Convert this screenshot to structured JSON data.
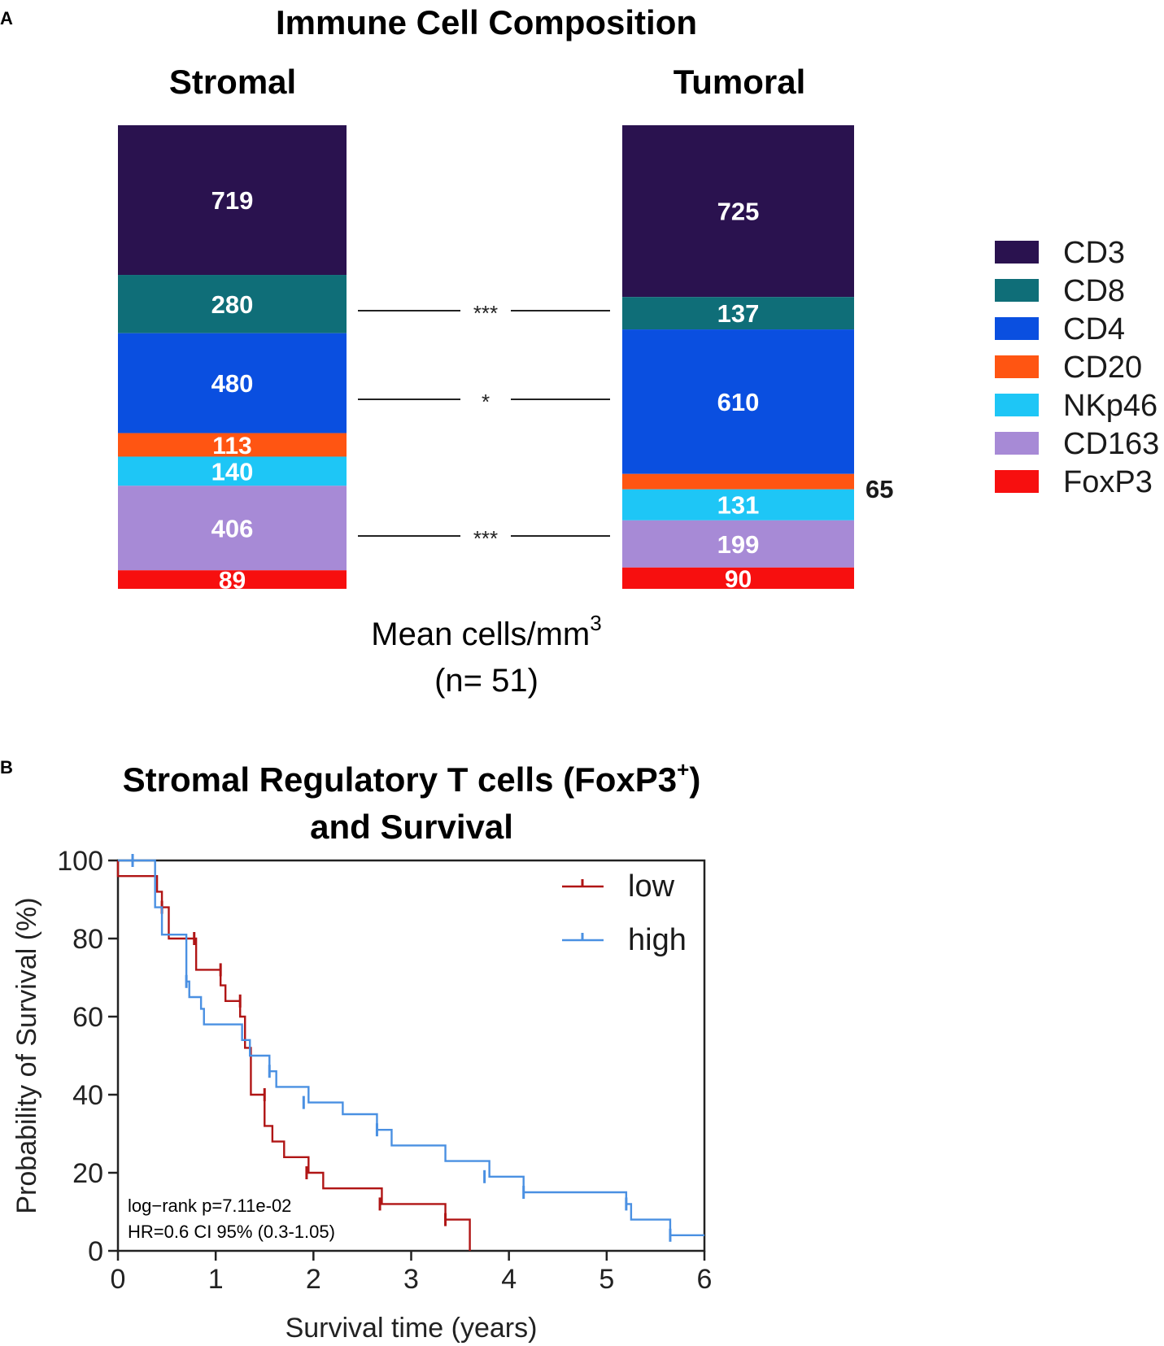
{
  "panel_a": {
    "label": "A",
    "title": "Immune Cell Composition",
    "bar_titles": [
      "Stromal",
      "Tumoral"
    ],
    "footer_line1": "Mean cells/mm",
    "footer_sup": "3",
    "footer_line2": "(n= 51)"
  },
  "panel_b": {
    "label": "B",
    "title_line1": "Stromal Regulatory T cells (FoxP3",
    "title_sup": "+",
    "title_close": ")",
    "title_line2": "and Survival",
    "annotation_line1": "log−rank p=7.11e-02",
    "annotation_line2": "HR=0.6 CI 95% (0.3-1.05)"
  },
  "chart_data": [
    {
      "type": "bar",
      "stacked": true,
      "title": "Immune Cell Composition",
      "categories": [
        "Stromal",
        "Tumoral"
      ],
      "series": [
        {
          "name": "CD3",
          "color": "#2a124f",
          "values": [
            719,
            725
          ]
        },
        {
          "name": "CD8",
          "color": "#0f6e78",
          "values": [
            280,
            137
          ]
        },
        {
          "name": "CD4",
          "color": "#0a4fe0",
          "values": [
            480,
            610
          ]
        },
        {
          "name": "CD20",
          "color": "#ff5512",
          "values": [
            113,
            65
          ]
        },
        {
          "name": "NKp46",
          "color": "#1ec6f6",
          "values": [
            140,
            131
          ]
        },
        {
          "name": "CD163",
          "color": "#a78ad6",
          "values": [
            406,
            199
          ]
        },
        {
          "name": "FoxP3",
          "color": "#f70f0f",
          "values": [
            89,
            90
          ]
        }
      ],
      "outside_labels": [
        {
          "category": "Tumoral",
          "series": "CD20",
          "text": "65"
        }
      ],
      "significance": [
        {
          "series": "CD8",
          "text": "***"
        },
        {
          "series": "CD4",
          "text": "*"
        },
        {
          "series": "CD163",
          "text": "***"
        }
      ],
      "xlabel": "Mean cells/mm3 (n= 51)"
    },
    {
      "type": "line",
      "step": true,
      "title": "Stromal Regulatory T cells (FoxP3+) and Survival",
      "xlabel": "Survival time (years)",
      "ylabel": "Probability of Survival (%)",
      "xlim": [
        0,
        6
      ],
      "ylim": [
        0,
        100
      ],
      "xticks": [
        0,
        1,
        2,
        3,
        4,
        5,
        6
      ],
      "yticks": [
        0,
        20,
        40,
        60,
        80,
        100
      ],
      "legend": "top-right",
      "series": [
        {
          "name": "low",
          "color": "#b01515",
          "x": [
            0,
            0.4,
            0.45,
            0.52,
            0.8,
            1.05,
            1.1,
            1.25,
            1.3,
            1.36,
            1.5,
            1.58,
            1.7,
            1.95,
            2.1,
            2.7,
            3.35,
            3.6
          ],
          "y": [
            96,
            92,
            88,
            80,
            72,
            68,
            64,
            60,
            52,
            40,
            32,
            28,
            24,
            20,
            16,
            12,
            8,
            0
          ],
          "censor_x": [
            0.45,
            0.78,
            1.05,
            1.25,
            1.5,
            1.93,
            2.68,
            3.35
          ],
          "censor_y": [
            88,
            80,
            72,
            64,
            40,
            20,
            12,
            8
          ]
        },
        {
          "name": "high",
          "color": "#4a90e2",
          "x": [
            0,
            0.38,
            0.45,
            0.7,
            0.73,
            0.85,
            0.88,
            1.27,
            1.35,
            1.55,
            1.62,
            1.95,
            2.3,
            2.65,
            2.8,
            3.35,
            3.8,
            4.15,
            5.2,
            5.25,
            5.65,
            6.05
          ],
          "y": [
            100,
            88,
            81,
            69,
            65,
            62,
            58,
            54,
            50,
            46,
            42,
            38,
            35,
            31,
            27,
            23,
            19,
            15,
            12,
            8,
            4,
            4
          ],
          "censor_x": [
            0.15,
            0.7,
            1.55,
            1.9,
            2.65,
            3.75,
            4.15,
            5.2,
            5.65
          ],
          "censor_y": [
            100,
            69,
            46,
            38,
            31,
            19,
            15,
            12,
            4
          ]
        }
      ]
    }
  ]
}
